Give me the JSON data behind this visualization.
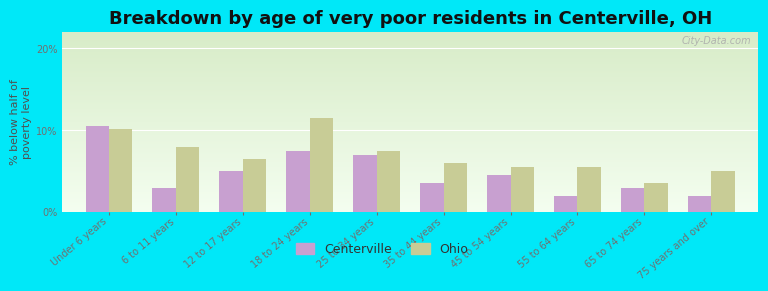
{
  "title": "Breakdown by age of very poor residents in Centerville, OH",
  "ylabel": "% below half of\npoverty level",
  "categories": [
    "Under 6 years",
    "6 to 11 years",
    "12 to 17 years",
    "18 to 24 years",
    "25 to 34 years",
    "35 to 44 years",
    "45 to 54 years",
    "55 to 64 years",
    "65 to 74 years",
    "75 years and over"
  ],
  "centerville_values": [
    10.5,
    3.0,
    5.0,
    7.5,
    7.0,
    3.5,
    4.5,
    2.0,
    3.0,
    2.0
  ],
  "ohio_values": [
    10.2,
    8.0,
    6.5,
    11.5,
    7.5,
    6.0,
    5.5,
    5.5,
    3.5,
    5.0
  ],
  "centerville_color": "#c8a0d0",
  "ohio_color": "#c8cc96",
  "background_outer": "#00e8f8",
  "background_plot_top": "#d8ecc8",
  "background_plot_bottom": "#f4fef0",
  "ylim": [
    0,
    22
  ],
  "yticks": [
    0,
    10,
    20
  ],
  "ytick_labels": [
    "0%",
    "10%",
    "20%"
  ],
  "bar_width": 0.35,
  "title_fontsize": 13,
  "axis_label_fontsize": 8,
  "tick_label_fontsize": 7,
  "legend_fontsize": 9,
  "watermark": "City-Data.com"
}
